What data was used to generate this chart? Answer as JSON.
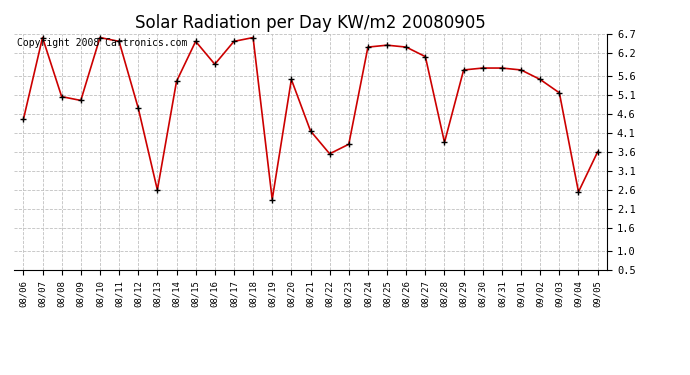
{
  "title": "Solar Radiation per Day KW/m2 20080905",
  "copyright": "Copyright 2008 Cartronics.com",
  "dates": [
    "08/06",
    "08/07",
    "08/08",
    "08/09",
    "08/10",
    "08/11",
    "08/12",
    "08/13",
    "08/14",
    "08/15",
    "08/16",
    "08/17",
    "08/18",
    "08/19",
    "08/20",
    "08/21",
    "08/22",
    "08/23",
    "08/24",
    "08/25",
    "08/26",
    "08/27",
    "08/28",
    "08/29",
    "08/30",
    "08/31",
    "09/01",
    "09/02",
    "09/03",
    "09/04",
    "09/05"
  ],
  "values": [
    4.45,
    6.6,
    5.05,
    4.95,
    6.6,
    6.5,
    4.75,
    2.6,
    5.45,
    6.5,
    5.9,
    6.5,
    6.6,
    2.35,
    5.5,
    4.15,
    3.55,
    3.8,
    6.35,
    6.4,
    6.35,
    6.1,
    3.85,
    5.75,
    5.8,
    5.8,
    5.75,
    5.5,
    5.15,
    2.55,
    3.6
  ],
  "line_color": "#cc0000",
  "marker_color": "#000000",
  "background_color": "#ffffff",
  "plot_bg_color": "#ffffff",
  "grid_color": "#c0c0c0",
  "ylim": [
    0.5,
    6.7
  ],
  "yticks": [
    0.5,
    1.0,
    1.6,
    2.1,
    2.6,
    3.1,
    3.6,
    4.1,
    4.6,
    5.1,
    5.6,
    6.2,
    6.7
  ],
  "title_fontsize": 12,
  "copyright_fontsize": 7
}
